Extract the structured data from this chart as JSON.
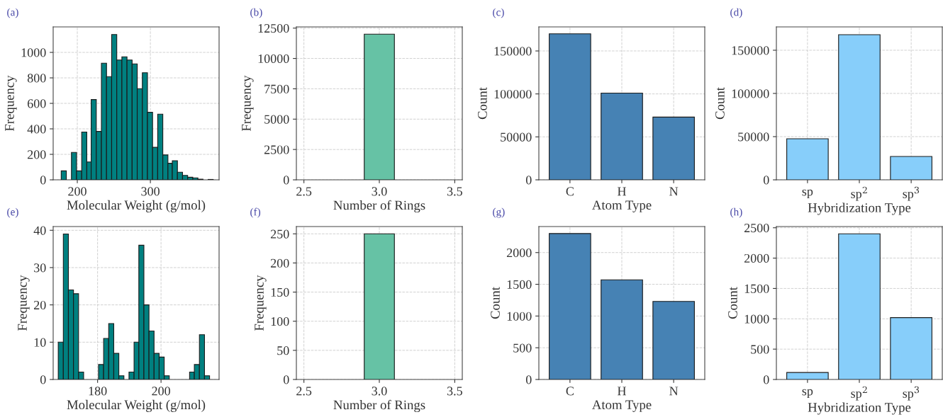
{
  "chart_data": [
    {
      "type": "histogram",
      "title": "(a)",
      "xlabel": "Molecular Weight (g/mol)",
      "ylabel": "Frequency",
      "color": "#008080",
      "grid": true,
      "bins": [
        178,
        185,
        192,
        199,
        206,
        213,
        219,
        226,
        233,
        240,
        247,
        254,
        261,
        268,
        275,
        282,
        289,
        296,
        303,
        310,
        317,
        324,
        330,
        337,
        344,
        351,
        358,
        365,
        372,
        379,
        386
      ],
      "values": [
        70,
        0,
        215,
        70,
        375,
        140,
        630,
        380,
        915,
        810,
        1140,
        940,
        965,
        940,
        910,
        715,
        840,
        530,
        255,
        515,
        195,
        130,
        150,
        60,
        35,
        20,
        15,
        5,
        0,
        3
      ],
      "xlim": [
        167,
        394
      ],
      "xticks": [
        200,
        300
      ],
      "ylim": [
        0,
        1200
      ],
      "yticks": [
        0,
        200,
        400,
        600,
        800,
        1000
      ]
    },
    {
      "type": "histogram",
      "title": "(b)",
      "xlabel": "Number of Rings",
      "ylabel": "Frequency",
      "color": "#66c2a5",
      "grid": true,
      "bins": [
        2.9,
        3.1
      ],
      "values": [
        12000
      ],
      "xlim": [
        2.45,
        3.55
      ],
      "xticks": [
        2.5,
        {
          "value": 3,
          "label": "3.0"
        },
        3.5
      ],
      "ylim": [
        0,
        12600
      ],
      "yticks": [
        0,
        2500,
        5000,
        7500,
        10000,
        12500
      ]
    },
    {
      "type": "bar",
      "title": "(c)",
      "xlabel": "Atom Type",
      "ylabel": "Count",
      "color": "#4682b4",
      "grid": true,
      "categories": [
        "C",
        "H",
        "N"
      ],
      "values": [
        170000,
        101000,
        73000
      ],
      "ylim": [
        0,
        178000
      ],
      "yticks": [
        0,
        50000,
        100000,
        150000
      ]
    },
    {
      "type": "bar",
      "title": "(d)",
      "xlabel": "Hybridization Type",
      "ylabel": "Count",
      "color": "#87cefa",
      "grid": true,
      "categories": [
        "sp",
        "sp$^{2}$",
        "sp$^{3}$"
      ],
      "values": [
        47500,
        168000,
        27000
      ],
      "ylim": [
        0,
        177000
      ],
      "yticks": [
        0,
        50000,
        100000,
        150000
      ]
    },
    {
      "type": "histogram",
      "title": "(e)",
      "xlabel": "Molecular Weight (g/mol)",
      "ylabel": "Frequency",
      "color": "#008080",
      "grid": true,
      "bins": [
        167.6,
        169.2,
        170.8,
        172.4,
        174.0,
        175.6,
        177.1,
        178.7,
        180.3,
        181.9,
        183.5,
        185.1,
        186.7,
        188.3,
        189.9,
        191.5,
        193.0,
        194.6,
        196.2,
        197.8,
        199.4,
        201.0,
        202.6,
        204.2,
        205.8,
        207.4,
        209.0,
        210.5,
        212.1,
        213.7,
        215.3
      ],
      "values": [
        10,
        39,
        24,
        23,
        2,
        0,
        0,
        0,
        4,
        11,
        15,
        7,
        1,
        0,
        2,
        10,
        36,
        20,
        13,
        7,
        6,
        1,
        0,
        0,
        0,
        0,
        2,
        4,
        12,
        1
      ],
      "xlim": [
        166,
        218.3
      ],
      "xticks": [
        180,
        200
      ],
      "ylim": [
        0,
        41
      ],
      "yticks": [
        0,
        10,
        20,
        30,
        40
      ]
    },
    {
      "type": "histogram",
      "title": "(f)",
      "xlabel": "Number of Rings",
      "ylabel": "Frequency",
      "color": "#66c2a5",
      "grid": true,
      "bins": [
        2.9,
        3.1
      ],
      "values": [
        250
      ],
      "xlim": [
        2.45,
        3.55
      ],
      "xticks": [
        2.5,
        {
          "value": 3,
          "label": "3.0"
        },
        3.5
      ],
      "ylim": [
        0,
        262.5
      ],
      "yticks": [
        0,
        50,
        100,
        150,
        200,
        250
      ]
    },
    {
      "type": "bar",
      "title": "(g)",
      "xlabel": "Atom Type",
      "ylabel": "Count",
      "color": "#4682b4",
      "grid": true,
      "categories": [
        "C",
        "H",
        "N"
      ],
      "values": [
        2300,
        1570,
        1230
      ],
      "ylim": [
        0,
        2410
      ],
      "yticks": [
        0,
        500,
        1000,
        1500,
        2000
      ]
    },
    {
      "type": "bar",
      "title": "(h)",
      "xlabel": "Hybridization Type",
      "ylabel": "Count",
      "color": "#87cefa",
      "grid": true,
      "categories": [
        "sp",
        "sp$^{2}$",
        "sp$^{3}$"
      ],
      "values": [
        115,
        2400,
        1020
      ],
      "ylim": [
        0,
        2520
      ],
      "yticks": [
        0,
        500,
        1000,
        1500,
        2000,
        2500
      ]
    }
  ]
}
